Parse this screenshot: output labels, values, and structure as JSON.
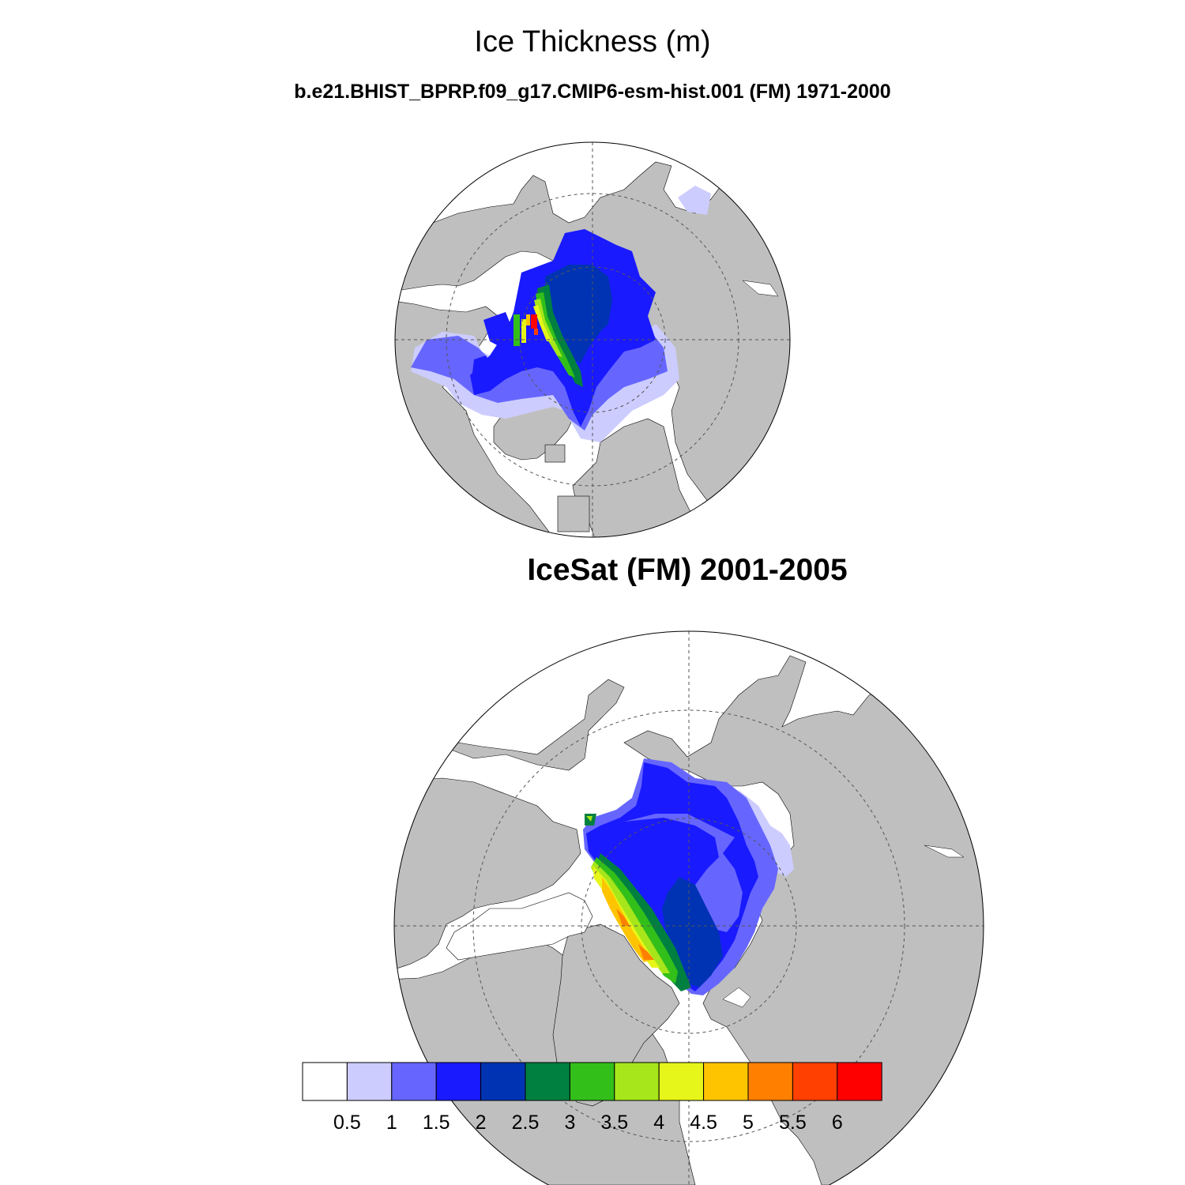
{
  "header": {
    "title": "Ice Thickness (m)",
    "subtitle": "b.e21.BHIST_BPRP.f09_g17.CMIP6-esm-hist.001 (FM) 1971-2000"
  },
  "panels": [
    {
      "id": "model",
      "title": "",
      "projection": "north-polar-stereographic"
    },
    {
      "id": "obs",
      "title": "IceSat (FM) 2001-2005",
      "projection": "north-polar-stereographic"
    }
  ],
  "colors": {
    "land": "#bfbfbf",
    "ocean": "#ffffff",
    "outline": "#000000",
    "grid": "#555555"
  },
  "chart_data": {
    "type": "heatmap",
    "title": "Ice Thickness (m)",
    "variable": "sea ice thickness",
    "units": "m",
    "colorbar": {
      "orientation": "horizontal",
      "tick_labels": [
        "0.5",
        "1",
        "1.5",
        "2",
        "2.5",
        "3",
        "3.5",
        "4",
        "4.5",
        "5",
        "5.5",
        "6"
      ],
      "levels": [
        0.5,
        1,
        1.5,
        2,
        2.5,
        3,
        3.5,
        4,
        4.5,
        5,
        5.5,
        6
      ],
      "bin_colors": [
        "#ffffff",
        "#ccccff",
        "#6666ff",
        "#1a1aff",
        "#0033b3",
        "#008040",
        "#33bf1a",
        "#a6e61a",
        "#e6f51a",
        "#ffc400",
        "#ff8000",
        "#ff4000",
        "#ff0000"
      ]
    }
  }
}
